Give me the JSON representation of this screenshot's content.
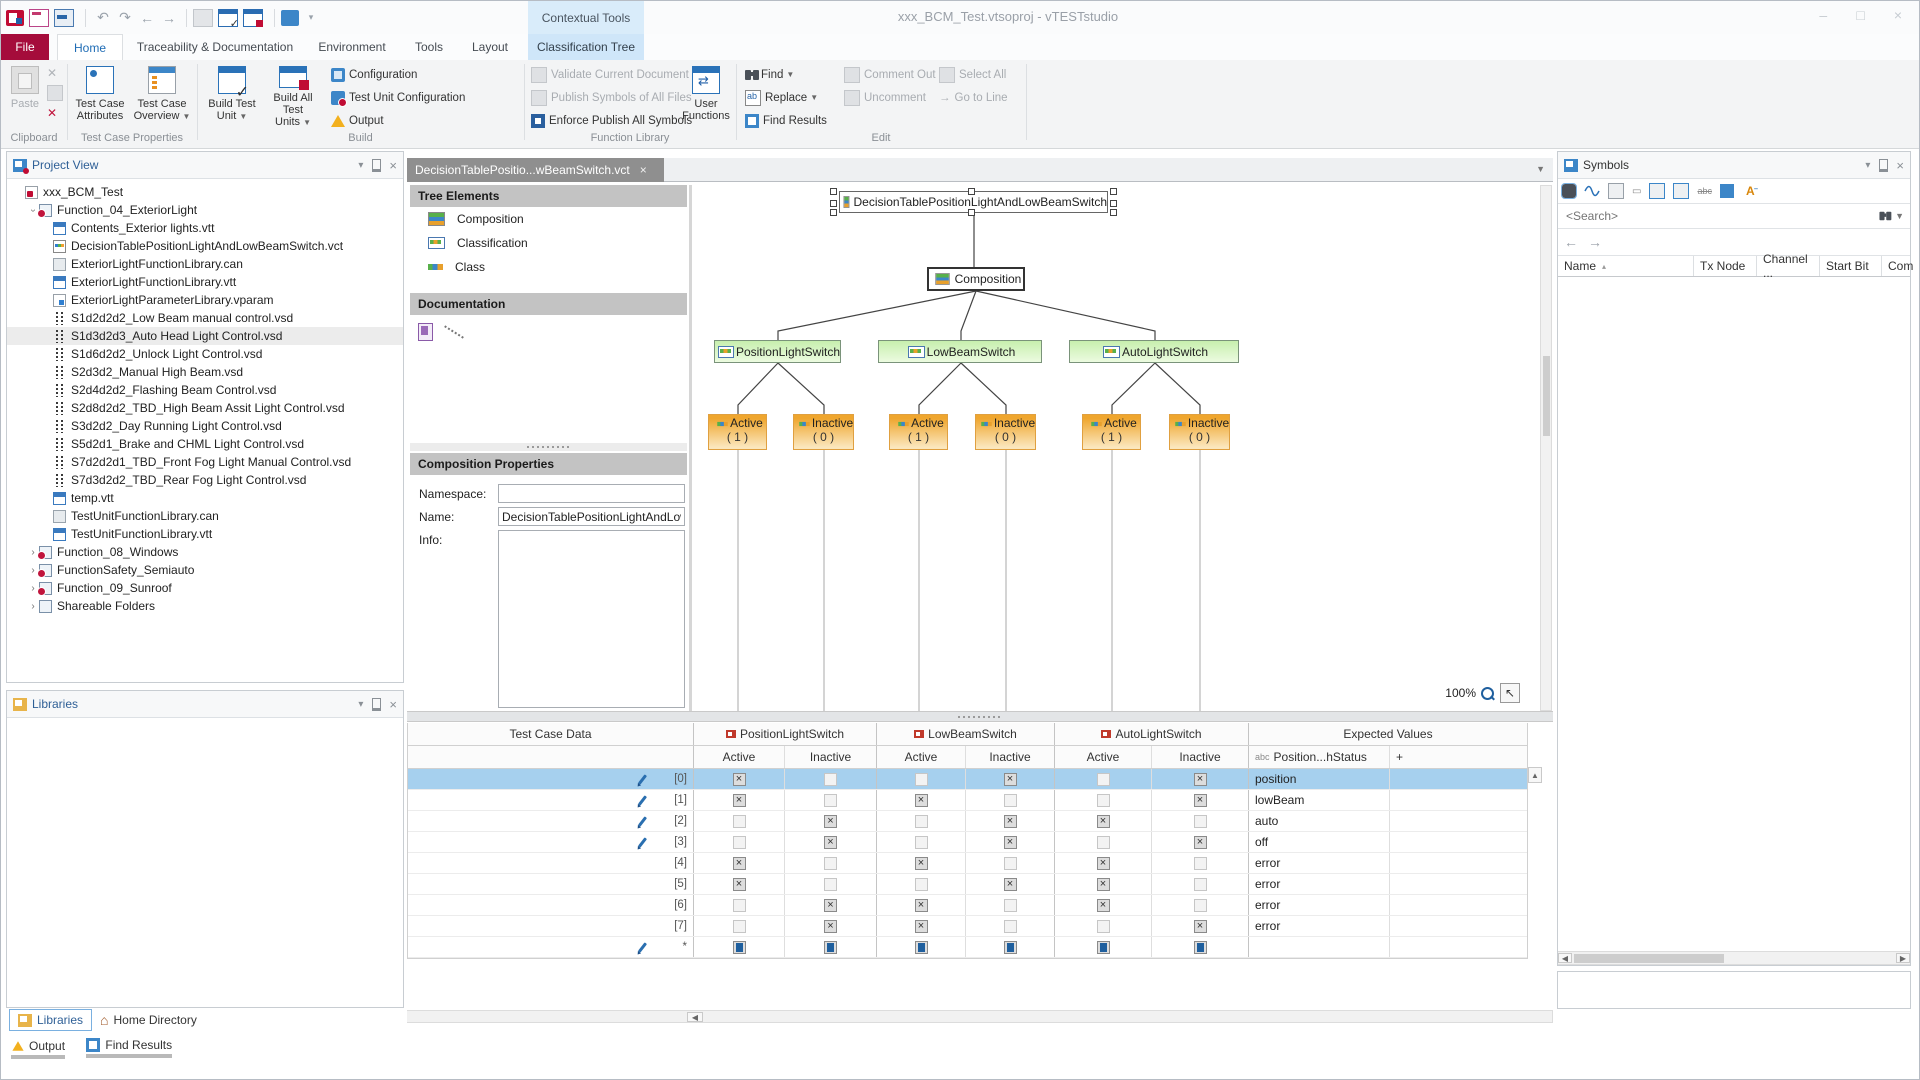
{
  "window": {
    "title": "xxx_BCM_Test.vtsoproj - vTESTstudio",
    "contextual_tools": "Contextual Tools",
    "controls": {
      "minimize": "–",
      "maximize": "□",
      "close": "×"
    }
  },
  "colors": {
    "brand_crimson": "#a50c3b",
    "accent_blue": "#2a72b8",
    "contextual_blue": "#cfe6f9",
    "selection_blue": "#a6d0ee",
    "node_green": "#c7efae",
    "node_orange": "#efa62e"
  },
  "ribbon": {
    "file_tab": "File",
    "tabs": [
      "Home",
      "Traceability & Documentation",
      "Environment",
      "Tools",
      "Layout"
    ],
    "contextual_tab": "Classification Tree",
    "active_tab": "Home",
    "clipboard": {
      "label": "Clipboard",
      "paste": "Paste"
    },
    "tcp": {
      "label": "Test Case Properties",
      "attributes": "Test Case Attributes",
      "overview": "Test Case Overview"
    },
    "build": {
      "label": "Build",
      "btn1": "Build Test Unit",
      "btn2": "Build All Test Units",
      "items": [
        "Configuration",
        "Test Unit Configuration",
        "Output"
      ]
    },
    "funclib": {
      "label": "Function Library",
      "items": [
        "Validate Current Document",
        "Publish Symbols of All Files",
        "Enforce Publish All Symbols"
      ],
      "user_functions": "User Functions"
    },
    "edit": {
      "label": "Edit",
      "find": "Find",
      "replace": "Replace",
      "find_results": "Find Results",
      "comment_out": "Comment Out",
      "uncomment": "Uncomment",
      "select_all": "Select All",
      "goto_line": "Go to Line"
    }
  },
  "project_view": {
    "title": "Project View",
    "items": [
      {
        "label": "xxx_BCM_Test",
        "icon": "project",
        "indent": 0
      },
      {
        "label": "Function_04_ExteriorLight",
        "icon": "folder",
        "indent": 1,
        "expander": "open"
      },
      {
        "label": "Contents_Exterior lights.vtt",
        "icon": "vtt",
        "indent": 2
      },
      {
        "label": "DecisionTablePositionLightAndLowBeamSwitch.vct",
        "icon": "vct",
        "indent": 2
      },
      {
        "label": "ExteriorLightFunctionLibrary.can",
        "icon": "can",
        "indent": 2
      },
      {
        "label": "ExteriorLightFunctionLibrary.vtt",
        "icon": "vtt",
        "indent": 2
      },
      {
        "label": "ExteriorLightParameterLibrary.vparam",
        "icon": "vparam",
        "indent": 2
      },
      {
        "label": "S1d2d2d2_Low Beam manual control.vsd",
        "icon": "vsd",
        "indent": 2
      },
      {
        "label": "S1d3d2d3_Auto Head Light Control.vsd",
        "icon": "vsd",
        "indent": 2,
        "selected": true
      },
      {
        "label": "S1d6d2d2_Unlock Light Control.vsd",
        "icon": "vsd",
        "indent": 2
      },
      {
        "label": "S2d3d2_Manual High Beam.vsd",
        "icon": "vsd",
        "indent": 2
      },
      {
        "label": "S2d4d2d2_Flashing Beam Control.vsd",
        "icon": "vsd",
        "indent": 2
      },
      {
        "label": "S2d8d2d2_TBD_High Beam Assit Light Control.vsd",
        "icon": "vsd",
        "indent": 2
      },
      {
        "label": "S3d2d2_Day Running Light Control.vsd",
        "icon": "vsd",
        "indent": 2
      },
      {
        "label": "S5d2d1_Brake and CHML Light Control.vsd",
        "icon": "vsd",
        "indent": 2
      },
      {
        "label": "S7d2d2d1_TBD_Front Fog Light Manual Control.vsd",
        "icon": "vsd",
        "indent": 2
      },
      {
        "label": "S7d3d2d2_TBD_Rear Fog Light Control.vsd",
        "icon": "vsd",
        "indent": 2
      },
      {
        "label": "temp.vtt",
        "icon": "vtt",
        "indent": 2
      },
      {
        "label": "TestUnitFunctionLibrary.can",
        "icon": "can",
        "indent": 2
      },
      {
        "label": "TestUnitFunctionLibrary.vtt",
        "icon": "vtt",
        "indent": 2
      },
      {
        "label": "Function_08_Windows",
        "icon": "folder",
        "indent": 1,
        "expander": "closed"
      },
      {
        "label": "FunctionSafety_Semiauto",
        "icon": "folder",
        "indent": 1,
        "expander": "closed"
      },
      {
        "label": "Function_09_Sunroof",
        "icon": "folder",
        "indent": 1,
        "expander": "closed"
      },
      {
        "label": "Shareable Folders",
        "icon": "folder2",
        "indent": 1,
        "expander": "closed"
      }
    ]
  },
  "libraries": {
    "title": "Libraries",
    "tab_libraries": "Libraries",
    "tab_home": "Home Directory"
  },
  "statusbar": {
    "output": "Output",
    "find_results": "Find Results"
  },
  "editor": {
    "tab_title": "DecisionTablePositio...wBeamSwitch.vct",
    "palette": {
      "tree_elements": {
        "title": "Tree Elements",
        "items": [
          "Composition",
          "Classification",
          "Class"
        ]
      },
      "documentation": {
        "title": "Documentation"
      },
      "composition_properties": {
        "title": "Composition Properties",
        "namespace_label": "Namespace:",
        "namespace_value": "",
        "name_label": "Name:",
        "name_value": "DecisionTablePositionLightAndLowBe",
        "info_label": "Info:",
        "info_value": ""
      }
    },
    "diagram": {
      "root": "DecisionTablePositionLightAndLowBeamSwitch",
      "composition": "Composition",
      "classifications": [
        {
          "name": "PositionLightSwitch",
          "classes": [
            {
              "label": "Active",
              "value": "( 1 )"
            },
            {
              "label": "Inactive",
              "value": "( 0 )"
            }
          ]
        },
        {
          "name": "LowBeamSwitch",
          "classes": [
            {
              "label": "Active",
              "value": "( 1 )"
            },
            {
              "label": "Inactive",
              "value": "( 0 )"
            }
          ]
        },
        {
          "name": "AutoLightSwitch",
          "classes": [
            {
              "label": "Active",
              "value": "( 1 )"
            },
            {
              "label": "Inactive",
              "value": "( 0 )"
            }
          ]
        }
      ],
      "zoom": "100%"
    },
    "table": {
      "title": "Test Case Data",
      "groups": [
        "PositionLightSwitch",
        "LowBeamSwitch",
        "AutoLightSwitch"
      ],
      "expected": "Expected Values",
      "col_active": "Active",
      "col_inactive": "Inactive",
      "expected_col": "Position...hStatus",
      "plus": "+",
      "rows": [
        {
          "index": "[0]",
          "pen": true,
          "checks": [
            1,
            0,
            0,
            1,
            0,
            1
          ],
          "expected": "position",
          "selected": true
        },
        {
          "index": "[1]",
          "pen": true,
          "checks": [
            1,
            0,
            1,
            0,
            0,
            1
          ],
          "expected": "lowBeam"
        },
        {
          "index": "[2]",
          "pen": true,
          "checks": [
            0,
            1,
            0,
            1,
            1,
            0
          ],
          "expected": "auto"
        },
        {
          "index": "[3]",
          "pen": true,
          "checks": [
            0,
            1,
            0,
            1,
            0,
            1
          ],
          "expected": "off"
        },
        {
          "index": "[4]",
          "pen": false,
          "checks": [
            1,
            0,
            1,
            0,
            1,
            0
          ],
          "expected": "error"
        },
        {
          "index": "[5]",
          "pen": false,
          "checks": [
            1,
            0,
            0,
            1,
            1,
            0
          ],
          "expected": "error"
        },
        {
          "index": "[6]",
          "pen": false,
          "checks": [
            0,
            1,
            1,
            0,
            1,
            0
          ],
          "expected": "error"
        },
        {
          "index": "[7]",
          "pen": false,
          "checks": [
            0,
            1,
            1,
            0,
            0,
            1
          ],
          "expected": "error"
        },
        {
          "index": "*",
          "pen": true,
          "checks": [
            "b",
            "b",
            "b",
            "b",
            "b",
            "b"
          ],
          "expected": ""
        }
      ]
    }
  },
  "symbols": {
    "title": "Symbols",
    "search_placeholder": "<Search>",
    "columns": [
      "Name",
      "Tx Node",
      "Channel ...",
      "Start Bit",
      "Com"
    ]
  }
}
